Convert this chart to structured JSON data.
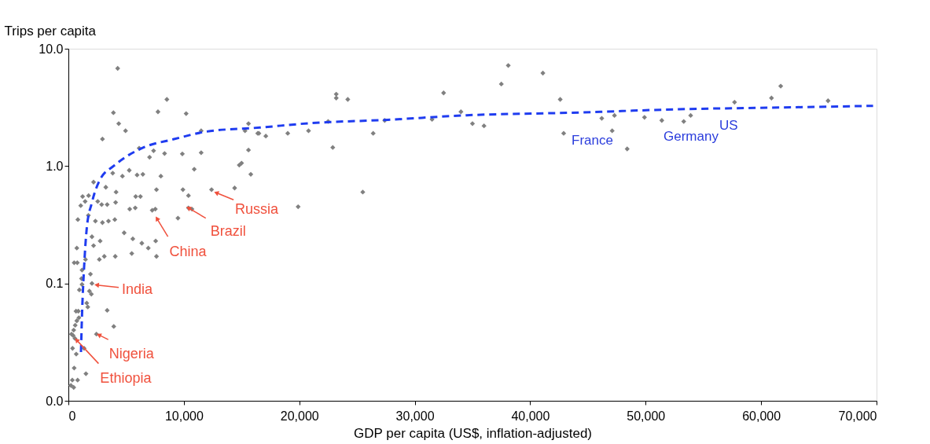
{
  "chart_data": {
    "type": "scatter",
    "xlabel": "GDP per capita (US$, inflation-adjusted)",
    "ylabel": "Trips per capita",
    "xlim": [
      0,
      70000
    ],
    "xticks": [
      0,
      {
        "value": 10000,
        "label": "10,000"
      },
      {
        "value": 20000,
        "label": "20,000"
      },
      {
        "value": 30000,
        "label": "30,000"
      },
      {
        "value": 40000,
        "label": "40,000"
      },
      {
        "value": 50000,
        "label": "50,000"
      },
      {
        "value": 60000,
        "label": "60,000"
      },
      {
        "value": 70000,
        "label": "70,000"
      }
    ],
    "ylim": [
      0.01,
      10
    ],
    "yticks": [
      {
        "value": 0.01,
        "label": "0.0"
      },
      {
        "value": 0.1,
        "label": "0.1"
      },
      {
        "value": 1,
        "label": "1.0"
      },
      {
        "value": 10,
        "label": "10.0"
      }
    ],
    "log": "y",
    "grid": false,
    "series": [
      {
        "color": "#808080",
        "marker": "diamond",
        "x": [
          65800,
          61700,
          60900,
          57700,
          53900,
          53300,
          51400,
          49900,
          48400,
          47300,
          47100,
          46200,
          42900,
          42600,
          41100,
          38100,
          37500,
          32500,
          34000,
          35000,
          36000,
          31500,
          27400,
          26400,
          25500,
          23200,
          23200,
          24200,
          22500,
          22900,
          20800,
          19000,
          19900,
          17100,
          16500,
          4270,
          8530,
          3900,
          7760,
          10200,
          4360,
          4950,
          2950,
          11500,
          15600,
          15300,
          16400,
          6130,
          7380,
          7030,
          8330,
          9870,
          11500,
          15600,
          10900,
          15000,
          14800,
          15800,
          14400,
          12400,
          9920,
          10400,
          10400,
          10700,
          9490,
          7630,
          8010,
          7260,
          7530,
          7560,
          7630,
          6920,
          6360,
          5580,
          5490,
          4830,
          4060,
          3110,
          2680,
          2750,
          2040,
          2180,
          5310,
          5790,
          5830,
          6240,
          5950,
          6450,
          5270,
          4680,
          3840,
          3240,
          4090,
          4130,
          4020,
          3470,
          2950,
          2340,
          2540,
          2880,
          3360,
          1730,
          2180,
          1750,
          1450,
          1070,
          1230,
          820,
          730,
          500,
          770,
          1480,
          1180,
          1140,
          1910,
          2040,
          1820,
          1990,
          950,
          1180,
          1590,
          1680,
          860,
          660,
          910,
          730,
          590,
          460,
          410,
          570,
          360,
          680,
          1360,
          2430,
          3360,
          3930,
          500,
          340,
          800,
          1520,
          220,
          460,
          270
        ],
        "values": [
          3.6,
          4.8,
          3.8,
          3.5,
          2.7,
          2.4,
          2.45,
          2.6,
          1.4,
          2.7,
          2.0,
          2.55,
          1.9,
          3.7,
          6.2,
          7.2,
          5.0,
          4.2,
          2.9,
          2.3,
          2.2,
          2.5,
          2.45,
          1.9,
          0.6,
          4.1,
          3.8,
          3.7,
          2.4,
          1.44,
          2.0,
          1.9,
          0.45,
          1.8,
          1.9,
          6.8,
          3.7,
          2.85,
          2.9,
          2.8,
          2.3,
          2.0,
          1.7,
          2.0,
          2.3,
          2.0,
          1.9,
          1.42,
          1.35,
          1.19,
          1.28,
          1.27,
          1.3,
          1.37,
          0.94,
          1.06,
          1.02,
          0.85,
          0.65,
          0.63,
          0.63,
          0.56,
          0.44,
          0.43,
          0.36,
          0.63,
          0.82,
          0.42,
          0.43,
          0.23,
          0.17,
          0.2,
          0.22,
          0.24,
          0.18,
          0.27,
          0.17,
          0.17,
          0.16,
          0.23,
          0.25,
          0.21,
          0.43,
          0.44,
          0.55,
          0.55,
          0.84,
          0.85,
          0.92,
          0.82,
          0.87,
          0.66,
          0.49,
          0.6,
          0.35,
          0.34,
          0.33,
          0.34,
          0.5,
          0.47,
          0.47,
          0.38,
          0.73,
          0.56,
          0.5,
          0.46,
          0.55,
          0.35,
          0.2,
          0.15,
          0.15,
          0.16,
          0.13,
          0.11,
          0.12,
          0.1,
          0.086,
          0.081,
          0.088,
          0.098,
          0.068,
          0.063,
          0.058,
          0.058,
          0.051,
          0.048,
          0.044,
          0.04,
          0.036,
          0.034,
          0.028,
          0.025,
          0.028,
          0.037,
          0.059,
          0.043,
          0.019,
          0.015,
          0.015,
          0.017,
          0.0135,
          0.013,
          0.037
        ]
      },
      {
        "type": "line",
        "color": "#1f3cf0",
        "line_style": "dashed",
        "x": [
          1090,
          1180,
          1360,
          1590,
          2040,
          2720,
          3970,
          5220,
          6580,
          9080,
          12000,
          16600,
          20900,
          27700,
          34500,
          43600,
          52900,
          62000,
          69700
        ],
        "values": [
          0.026,
          0.054,
          0.137,
          0.295,
          0.49,
          0.76,
          1.01,
          1.24,
          1.45,
          1.69,
          1.97,
          2.13,
          2.32,
          2.48,
          2.71,
          2.85,
          3.05,
          3.16,
          3.26
        ]
      }
    ],
    "annotations": [
      {
        "text": "Russia",
        "x": 12400,
        "y": 0.63
      },
      {
        "text": "Brazil",
        "x": 10400,
        "y": 0.44
      },
      {
        "text": "China",
        "x": 7530,
        "y": 0.43
      },
      {
        "text": "India",
        "x": 2040,
        "y": 0.1
      },
      {
        "text": "Nigeria",
        "x": 2430,
        "y": 0.037
      },
      {
        "text": "Ethiopia",
        "x": 570,
        "y": 0.034
      },
      "France",
      "Germany",
      "US"
    ]
  }
}
